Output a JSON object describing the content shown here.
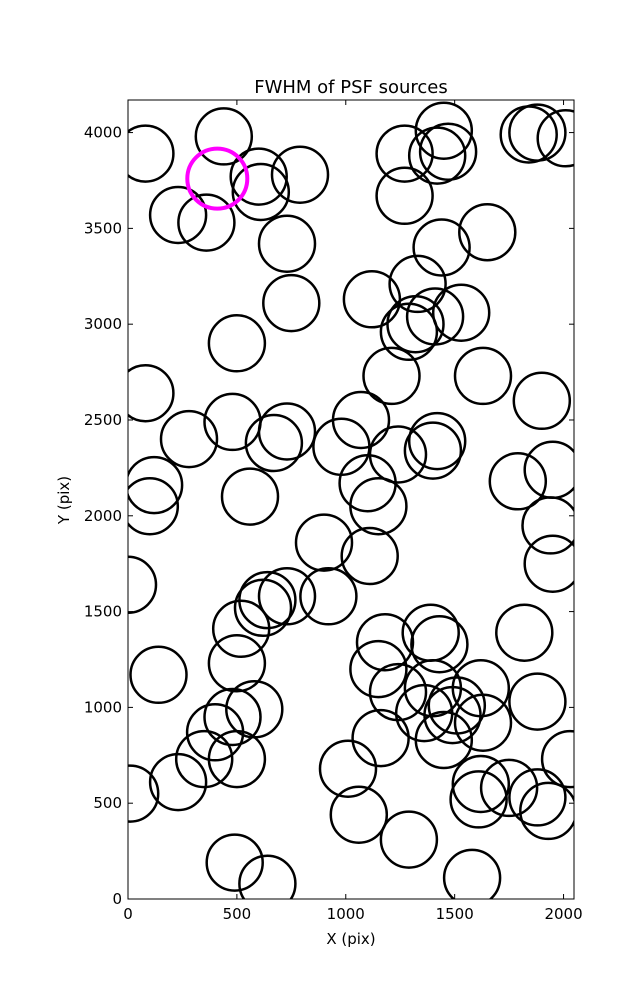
{
  "chart_data": {
    "type": "scatter",
    "title": "FWHM of PSF sources",
    "xlabel": "X (pix)",
    "ylabel": "Y (pix)",
    "xlim": [
      0,
      2048
    ],
    "ylim": [
      0,
      4170
    ],
    "xticks": [
      0,
      500,
      1000,
      1500,
      2000
    ],
    "yticks": [
      0,
      500,
      1000,
      1500,
      2000,
      2500,
      3000,
      3500,
      4000
    ],
    "marker": "open circle",
    "grid": false,
    "series": [
      {
        "color": "#000000",
        "points": [
          [
            80,
            3890
          ],
          [
            440,
            3980
          ],
          [
            600,
            3770
          ],
          [
            610,
            3690
          ],
          [
            790,
            3780
          ],
          [
            230,
            3570
          ],
          [
            360,
            3530
          ],
          [
            730,
            3420
          ],
          [
            750,
            3110
          ],
          [
            500,
            2900
          ],
          [
            80,
            2640
          ],
          [
            480,
            2490
          ],
          [
            730,
            2440
          ],
          [
            670,
            2380
          ],
          [
            280,
            2400
          ],
          [
            120,
            2160
          ],
          [
            100,
            2050
          ],
          [
            560,
            2100
          ],
          [
            900,
            1860
          ],
          [
            1070,
            2500
          ],
          [
            980,
            2360
          ],
          [
            1100,
            2170
          ],
          [
            1150,
            2050
          ],
          [
            1110,
            1790
          ],
          [
            0,
            1640
          ],
          [
            730,
            1580
          ],
          [
            640,
            1560
          ],
          [
            620,
            1520
          ],
          [
            920,
            1580
          ],
          [
            520,
            1410
          ],
          [
            500,
            1230
          ],
          [
            140,
            1170
          ],
          [
            580,
            990
          ],
          [
            480,
            950
          ],
          [
            400,
            870
          ],
          [
            350,
            730
          ],
          [
            500,
            730
          ],
          [
            230,
            610
          ],
          [
            10,
            550
          ],
          [
            490,
            190
          ],
          [
            640,
            80
          ],
          [
            1010,
            680
          ],
          [
            1060,
            440
          ],
          [
            1290,
            310
          ],
          [
            1160,
            840
          ],
          [
            1180,
            1340
          ],
          [
            1150,
            1200
          ],
          [
            1240,
            1080
          ],
          [
            1390,
            1390
          ],
          [
            1430,
            1330
          ],
          [
            1400,
            1100
          ],
          [
            1360,
            970
          ],
          [
            1490,
            960
          ],
          [
            1510,
            1010
          ],
          [
            1450,
            830
          ],
          [
            1620,
            1100
          ],
          [
            1630,
            920
          ],
          [
            1620,
            600
          ],
          [
            1610,
            520
          ],
          [
            1750,
            580
          ],
          [
            1880,
            530
          ],
          [
            1930,
            460
          ],
          [
            2030,
            730
          ],
          [
            1880,
            1030
          ],
          [
            1820,
            1390
          ],
          [
            1580,
            110
          ],
          [
            1270,
            3890
          ],
          [
            1420,
            3880
          ],
          [
            1450,
            4010
          ],
          [
            1470,
            3900
          ],
          [
            1270,
            3670
          ],
          [
            1440,
            3400
          ],
          [
            1650,
            3480
          ],
          [
            1330,
            3210
          ],
          [
            1320,
            3000
          ],
          [
            1290,
            2960
          ],
          [
            1410,
            3040
          ],
          [
            1530,
            3060
          ],
          [
            1120,
            3130
          ],
          [
            1210,
            2730
          ],
          [
            1630,
            2730
          ],
          [
            1900,
            2600
          ],
          [
            1420,
            2390
          ],
          [
            1400,
            2340
          ],
          [
            1240,
            2320
          ],
          [
            1790,
            2180
          ],
          [
            1950,
            2240
          ],
          [
            1940,
            1950
          ],
          [
            1950,
            1750
          ],
          [
            1840,
            3990
          ],
          [
            1880,
            4000
          ],
          [
            2010,
            3970
          ]
        ]
      },
      {
        "color": "#ff00ff",
        "points": [
          [
            410,
            3760
          ]
        ]
      }
    ]
  }
}
